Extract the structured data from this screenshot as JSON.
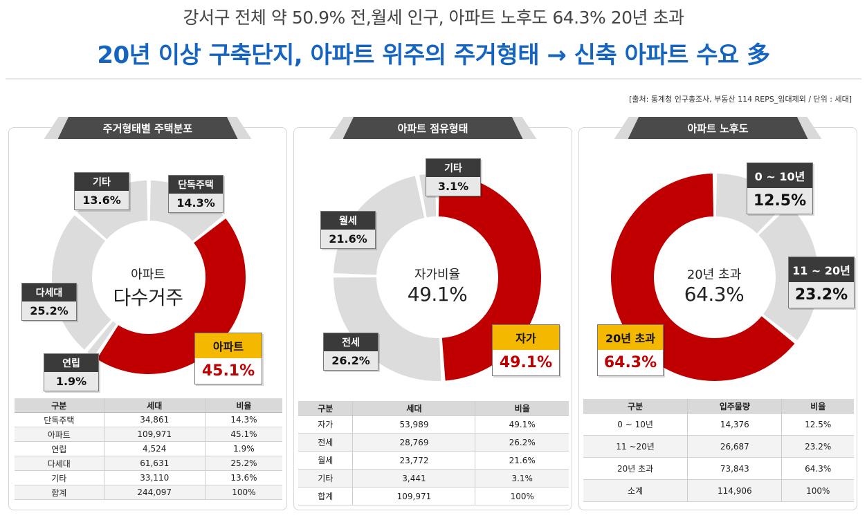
{
  "header": {
    "subtitle": "강서구 전체 약 50.9% 전,월세 인구, 아파트 노후도 64.3% 20년 초과",
    "title": "20년 이상 구축단지, 아파트 위주의 주거형태 → 신축 아파트 수요 多"
  },
  "source": "[출처: 통계청 인구총조사, 부동산 114 REPS_임대제외 / 단위 : 세대]",
  "colors": {
    "accent": "#c00000",
    "grey": "#d9d9d9",
    "highlight": "#f5b800",
    "title_blue": "#1565c0"
  },
  "chart_data": [
    {
      "type": "pie",
      "title": "주거형태별 주택분포",
      "center_small": "아파트",
      "center_big": "다수거주",
      "categories": [
        "단독주택",
        "아파트",
        "연립",
        "다세대",
        "기타"
      ],
      "values": [
        14.3,
        45.1,
        1.9,
        25.2,
        13.6
      ],
      "labels": [
        "14.3%",
        "45.1%",
        "1.9%",
        "25.2%",
        "13.6%"
      ],
      "highlight": "아파트",
      "table": {
        "headers": [
          "구분",
          "세대",
          "비율"
        ],
        "rows": [
          [
            "단독주택",
            "34,861",
            "14.3%"
          ],
          [
            "아파트",
            "109,971",
            "45.1%"
          ],
          [
            "연립",
            "4,524",
            "1.9%"
          ],
          [
            "다세대",
            "61,631",
            "25.2%"
          ],
          [
            "기타",
            "33,110",
            "13.6%"
          ],
          [
            "합계",
            "244,097",
            "100%"
          ]
        ]
      }
    },
    {
      "type": "pie",
      "title": "아파트 점유형태",
      "center_small": "자가비율",
      "center_big": "49.1%",
      "categories": [
        "자가",
        "전세",
        "월세",
        "기타"
      ],
      "values": [
        49.1,
        26.2,
        21.6,
        3.1
      ],
      "labels": [
        "49.1%",
        "26.2%",
        "21.6%",
        "3.1%"
      ],
      "highlight": "자가",
      "table": {
        "headers": [
          "구분",
          "세대",
          "비율"
        ],
        "rows": [
          [
            "자가",
            "53,989",
            "49.1%"
          ],
          [
            "전세",
            "28,769",
            "26.2%"
          ],
          [
            "월세",
            "23,772",
            "21.6%"
          ],
          [
            "기타",
            "3,441",
            "3.1%"
          ],
          [
            "합계",
            "109,971",
            "100%"
          ]
        ]
      }
    },
    {
      "type": "pie",
      "title": "아파트 노후도",
      "center_small": "20년 초과",
      "center_big": "64.3%",
      "categories": [
        "0 ~ 10년",
        "11 ~ 20년",
        "20년 초과"
      ],
      "values": [
        12.5,
        23.2,
        64.3
      ],
      "labels": [
        "12.5%",
        "23.2%",
        "64.3%"
      ],
      "highlight": "20년 초과",
      "table": {
        "headers": [
          "구분",
          "입주물량",
          "비율"
        ],
        "rows": [
          [
            "0 ~ 10년",
            "14,376",
            "12.5%"
          ],
          [
            "11 ~20년",
            "26,687",
            "23.2%"
          ],
          [
            "20년 초과",
            "73,843",
            "64.3%"
          ],
          [
            "소계",
            "114,906",
            "100%"
          ]
        ]
      }
    }
  ]
}
